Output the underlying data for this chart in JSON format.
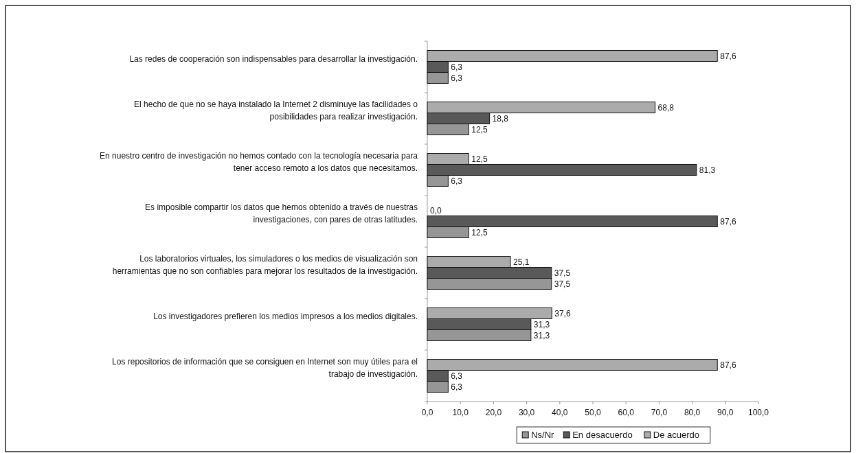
{
  "chart_data": {
    "type": "bar",
    "orientation": "horizontal",
    "categories": [
      "Las redes de cooperación son indispensables para desarrollar la investigación.",
      "El hecho de que no se haya instalado la Internet 2 disminuye las facilidades o posibilidades para realizar investigación.",
      "En nuestro centro de investigación no hemos contado con la tecnología necesaria para tener acceso remoto a los datos que necesitamos.",
      "Es imposible compartir los datos que hemos obtenido a través de nuestras investigaciones, con pares de otras latitudes.",
      "Los laboratorios virtuales, los simuladores o los medios de visualización son herramientas que no son confiables para mejorar los resultados de la investigación.",
      "Los investigadores prefieren los medios impresos a  los medios digitales.",
      "Los repositorios de  información que se consiguen en Internet son muy útiles para el trabajo de investigación."
    ],
    "series": [
      {
        "name": "Ns/Nr",
        "color": "#969696",
        "values": [
          6.3,
          12.5,
          6.3,
          12.5,
          37.5,
          31.3,
          6.3
        ],
        "value_labels": [
          "6,3",
          "12,5",
          "6,3",
          "12,5",
          "37,5",
          "31,3",
          "6,3"
        ]
      },
      {
        "name": "En desacuerdo",
        "color": "#595959",
        "values": [
          6.3,
          18.8,
          81.3,
          87.6,
          37.5,
          31.3,
          6.3
        ],
        "value_labels": [
          "6,3",
          "18,8",
          "81,3",
          "87,6",
          "37,5",
          "31,3",
          "6,3"
        ]
      },
      {
        "name": "De acuerdo",
        "color": "#ababab",
        "values": [
          87.6,
          68.8,
          12.5,
          0.0,
          25.1,
          37.6,
          87.6
        ],
        "value_labels": [
          "87,6",
          "68,8",
          "12,5",
          "0,0",
          "25,1",
          "37,6",
          "87,6"
        ]
      }
    ],
    "xlim": [
      0,
      100
    ],
    "xticks": [
      {
        "value": 0,
        "label": "0,0"
      },
      {
        "value": 10,
        "label": "10,0"
      },
      {
        "value": 20,
        "label": "20,0"
      },
      {
        "value": 30,
        "label": "30,0"
      },
      {
        "value": 40,
        "label": "40,0"
      },
      {
        "value": 50,
        "label": "50,0"
      },
      {
        "value": 60,
        "label": "60,0"
      },
      {
        "value": 70,
        "label": "70,0"
      },
      {
        "value": 80,
        "label": "80,0"
      },
      {
        "value": 90,
        "label": "90,0"
      },
      {
        "value": 100,
        "label": "100,0"
      }
    ],
    "grid": false,
    "legend": "bottom"
  }
}
